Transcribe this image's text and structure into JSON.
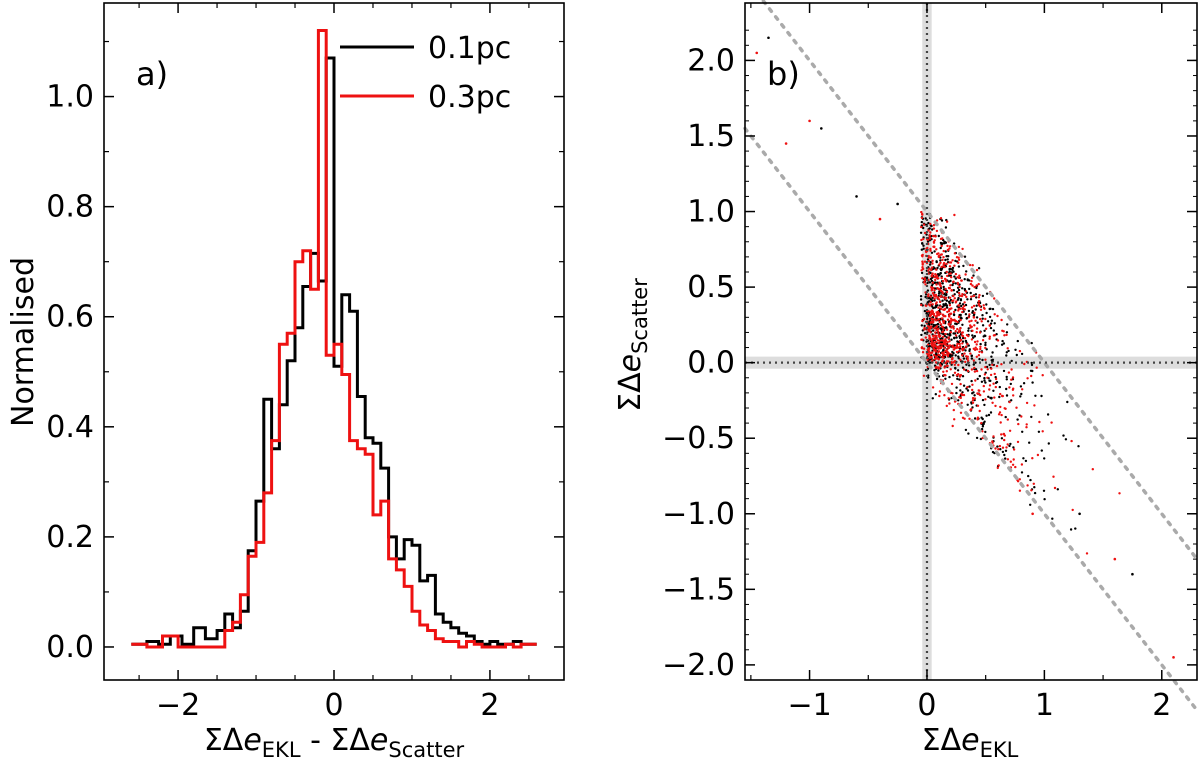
{
  "chart_data": [
    {
      "type": "histogram",
      "panel_label": "a)",
      "xlabel": {
        "prefix": "ΣΔ",
        "e": "e",
        "sub": "EKL",
        "mid": " - ΣΔ",
        "e2": "e",
        "sub2": "Scatter"
      },
      "ylabel": "Normalised",
      "xlim": [
        -2.95,
        2.95
      ],
      "ylim": [
        -0.06,
        1.17
      ],
      "xticks": [
        -2,
        0,
        2
      ],
      "xtick_labels": [
        "−2",
        "0",
        "2"
      ],
      "yticks": [
        0.0,
        0.2,
        0.4,
        0.6,
        0.8,
        1.0
      ],
      "ytick_labels": [
        "0.0",
        "0.2",
        "0.4",
        "0.6",
        "0.8",
        "1.0"
      ],
      "legend_position": "top-right",
      "series": [
        {
          "name": "0.1pc",
          "color": "#000000",
          "edges": [
            -2.6,
            -2.4,
            -2.25,
            -2.1,
            -1.95,
            -1.8,
            -1.65,
            -1.5,
            -1.4,
            -1.3,
            -1.2,
            -1.1,
            -1.0,
            -0.9,
            -0.8,
            -0.7,
            -0.6,
            -0.5,
            -0.4,
            -0.3,
            -0.2,
            -0.1,
            0.0,
            0.1,
            0.2,
            0.3,
            0.4,
            0.5,
            0.6,
            0.7,
            0.8,
            0.9,
            1.0,
            1.1,
            1.2,
            1.3,
            1.4,
            1.5,
            1.6,
            1.7,
            1.8,
            1.9,
            2.0,
            2.1,
            2.2,
            2.3,
            2.4,
            2.6
          ],
          "heights": [
            0.005,
            0.01,
            0.005,
            0.02,
            0.005,
            0.035,
            0.015,
            0.03,
            0.06,
            0.035,
            0.065,
            0.175,
            0.265,
            0.45,
            0.36,
            0.44,
            0.52,
            0.58,
            0.655,
            0.715,
            0.665,
            1.07,
            0.51,
            0.64,
            0.61,
            0.455,
            0.38,
            0.37,
            0.325,
            0.2,
            0.16,
            0.195,
            0.185,
            0.12,
            0.13,
            0.06,
            0.045,
            0.035,
            0.025,
            0.02,
            0.01,
            0.005,
            0.01,
            0.005,
            0.005,
            0.01,
            0.005
          ]
        },
        {
          "name": "0.3pc",
          "color": "#ee1111",
          "edges": [
            -2.6,
            -2.4,
            -2.2,
            -2.0,
            -1.8,
            -1.6,
            -1.4,
            -1.3,
            -1.2,
            -1.1,
            -1.0,
            -0.9,
            -0.8,
            -0.7,
            -0.6,
            -0.5,
            -0.4,
            -0.3,
            -0.2,
            -0.1,
            0.0,
            0.1,
            0.2,
            0.3,
            0.4,
            0.5,
            0.6,
            0.7,
            0.8,
            0.9,
            1.0,
            1.1,
            1.2,
            1.3,
            1.4,
            1.5,
            1.6,
            1.7,
            1.8,
            1.9,
            2.0,
            2.1,
            2.2,
            2.3,
            2.4,
            2.6
          ],
          "heights": [
            0.005,
            0.0,
            0.02,
            0.0,
            0.0,
            0.0,
            0.03,
            0.045,
            0.095,
            0.165,
            0.19,
            0.28,
            0.375,
            0.55,
            0.57,
            0.7,
            0.72,
            0.65,
            1.12,
            0.53,
            0.55,
            0.495,
            0.375,
            0.36,
            0.35,
            0.24,
            0.265,
            0.16,
            0.14,
            0.11,
            0.065,
            0.04,
            0.03,
            0.015,
            0.01,
            0.01,
            0.0,
            0.01,
            0.005,
            0.0,
            0.0,
            0.0,
            0.005,
            0.0,
            0.005
          ]
        }
      ]
    },
    {
      "type": "scatter",
      "panel_label": "b)",
      "xlabel": {
        "prefix": "ΣΔ",
        "e": "e",
        "sub": "EKL"
      },
      "ylabel": {
        "prefix": "ΣΔ",
        "e": "e",
        "sub": "Scatter"
      },
      "xlim": [
        -1.55,
        2.3
      ],
      "ylim": [
        -2.1,
        2.38
      ],
      "xticks": [
        -1,
        0,
        1,
        2
      ],
      "xtick_labels": [
        "−1",
        "0",
        "1",
        "2"
      ],
      "yticks": [
        -2.0,
        -1.5,
        -1.0,
        -0.5,
        0.0,
        0.5,
        1.0,
        1.5,
        2.0
      ],
      "ytick_labels": [
        "−2.0",
        "−1.5",
        "−1.0",
        "−0.5",
        "0.0",
        "0.5",
        "1.0",
        "1.5",
        "2.0"
      ],
      "reference_lines": {
        "x_equals_zero": true,
        "y_equals_zero": true,
        "diagonals": [
          "y = 1 − x",
          "y = −x"
        ]
      },
      "series": [
        {
          "name": "0.1pc",
          "color": "#000000",
          "n_points": 800
        },
        {
          "name": "0.3pc",
          "color": "#ee1111",
          "n_points": 800
        }
      ],
      "sample_points": [
        [
          -1.0,
          1.6
        ],
        [
          -0.9,
          1.55
        ],
        [
          -1.2,
          1.45
        ],
        [
          -1.35,
          2.15
        ],
        [
          -1.45,
          2.05
        ],
        [
          -0.6,
          1.1
        ],
        [
          -0.4,
          0.95
        ],
        [
          -0.25,
          1.05
        ],
        [
          1.6,
          -1.3
        ],
        [
          1.75,
          -1.4
        ],
        [
          2.1,
          -1.95
        ],
        [
          1.3,
          -1.0
        ],
        [
          0.9,
          -1.0
        ],
        [
          0.2,
          0.05
        ],
        [
          0.4,
          0.3
        ]
      ]
    }
  ]
}
